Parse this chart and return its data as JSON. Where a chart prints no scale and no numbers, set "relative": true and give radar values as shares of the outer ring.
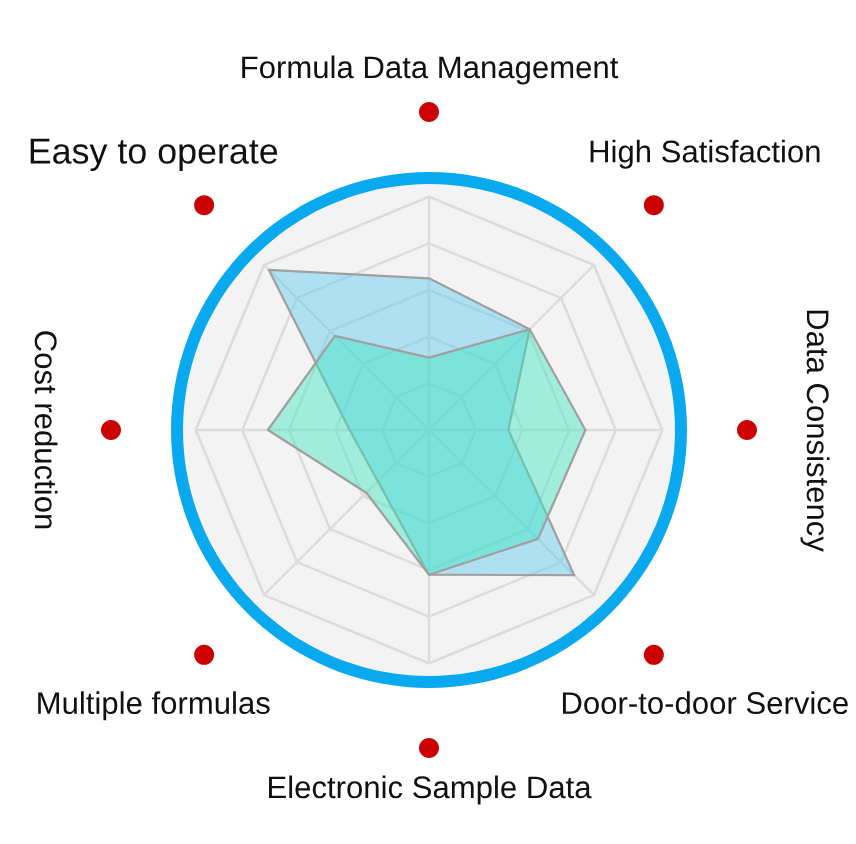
{
  "chart_data": {
    "type": "radar",
    "relative": true,
    "grid": true,
    "categories": [
      "Formula Data Management",
      "High Satisfaction",
      "Data Consistency",
      "Door-to-door Service",
      "Electronic Sample Data",
      "Multiple formulas",
      "Cost reduction",
      "Easy to operate"
    ],
    "series": [
      {
        "color": "#5ccaf2",
        "values": [
          0.65,
          0.61,
          0.34,
          0.88,
          0.62,
          0.31,
          0.34,
          0.97
        ]
      },
      {
        "color": "#3ee6c0",
        "values": [
          0.31,
          0.61,
          0.67,
          0.66,
          0.62,
          0.38,
          0.69,
          0.57
        ]
      }
    ]
  }
}
